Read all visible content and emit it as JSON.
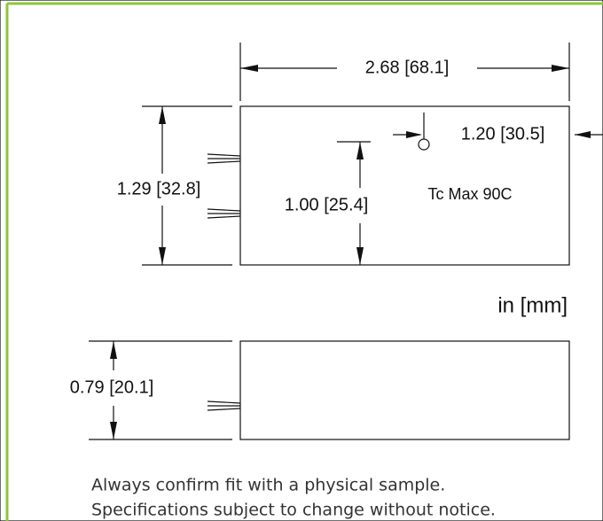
{
  "dimensions": {
    "length": "2.68 [68.1]",
    "width": "1.29 [32.8]",
    "tc_point_height": "1.00 [25.4]",
    "tc_point_offset": "1.20 [30.5]",
    "height": "0.79 [20.1]"
  },
  "tc_label": "Tc Max 90C",
  "units": "in [mm]",
  "notes": [
    "Always confirm fit with a physical sample.",
    "Specifications subject to change without notice."
  ]
}
